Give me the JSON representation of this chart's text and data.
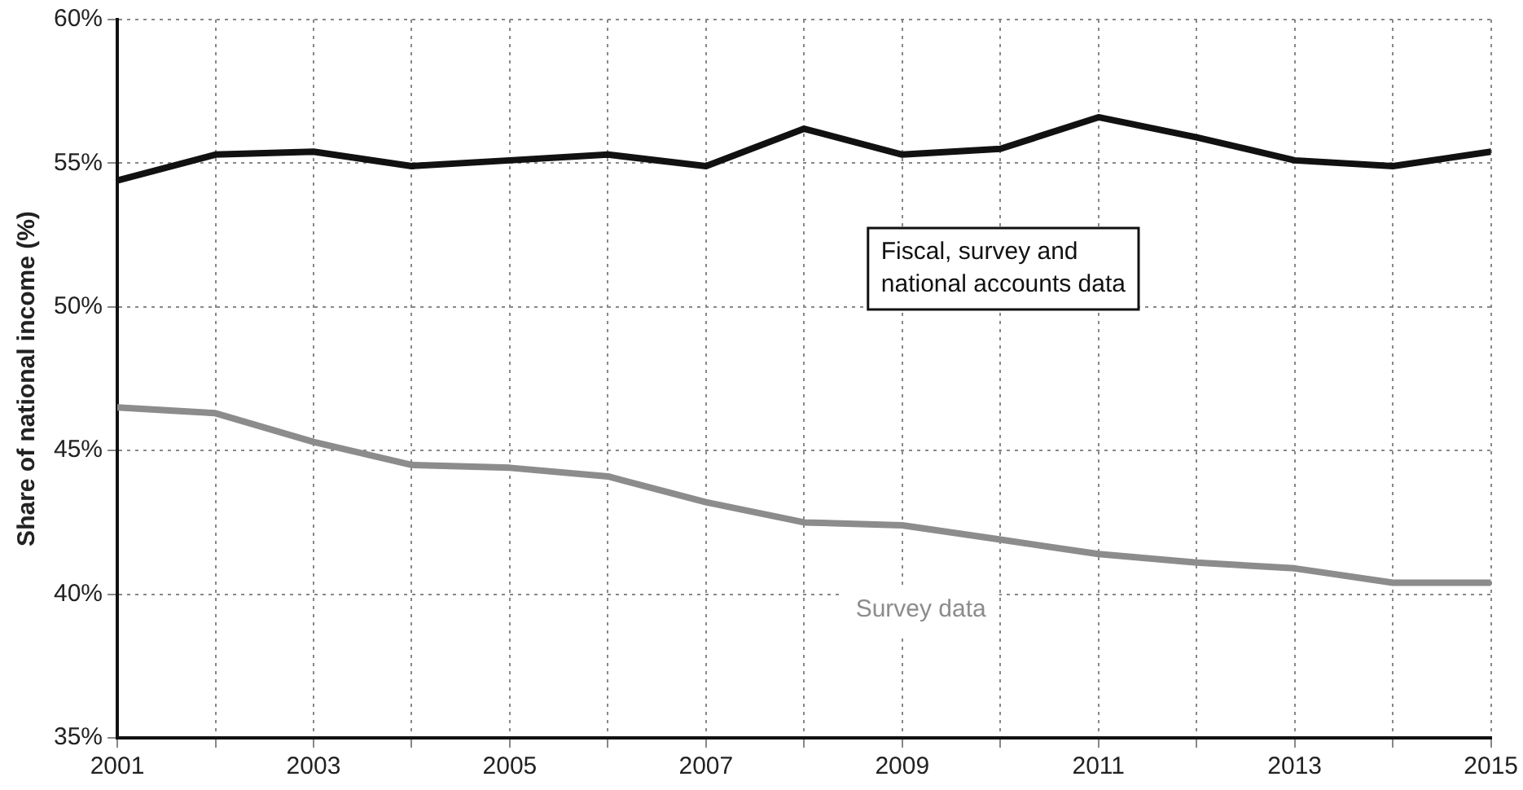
{
  "chart_data": {
    "type": "line",
    "ylabel": "Share of national income (%)",
    "x": [
      2001,
      2002,
      2003,
      2004,
      2005,
      2006,
      2007,
      2008,
      2009,
      2010,
      2011,
      2012,
      2013,
      2014,
      2015
    ],
    "series": [
      {
        "name": "Fiscal, survey and national accounts data",
        "color": "#111111",
        "values": [
          54.4,
          55.3,
          55.4,
          54.9,
          55.1,
          55.3,
          54.9,
          56.2,
          55.3,
          55.5,
          56.6,
          55.9,
          55.1,
          54.9,
          55.4
        ]
      },
      {
        "name": "Survey data",
        "color": "#8c8c8c",
        "values": [
          46.5,
          46.3,
          45.3,
          44.5,
          44.4,
          44.1,
          43.2,
          42.5,
          42.4,
          41.9,
          41.4,
          41.1,
          40.9,
          40.4,
          40.4
        ]
      }
    ],
    "xlim": [
      2001,
      2015
    ],
    "xticks": [
      2001,
      {
        "value": 2002,
        "label": null
      },
      2003,
      {
        "value": 2004,
        "label": null
      },
      2005,
      {
        "value": 2006,
        "label": null
      },
      2007,
      {
        "value": 2008,
        "label": null
      },
      2009,
      {
        "value": 2010,
        "label": null
      },
      2011,
      {
        "value": 2012,
        "label": null
      },
      2013,
      {
        "value": 2014,
        "label": null
      },
      2015
    ],
    "ylim": [
      35,
      60
    ],
    "yticks": [
      {
        "value": 35,
        "label": "35%"
      },
      {
        "value": 40,
        "label": "40%"
      },
      {
        "value": 45,
        "label": "45%"
      },
      {
        "value": 50,
        "label": "50%"
      },
      {
        "value": 55,
        "label": "55%"
      },
      {
        "value": 60,
        "label": "60%"
      }
    ],
    "grid": true,
    "legend": false,
    "marker": "none",
    "line_style": "solid"
  }
}
